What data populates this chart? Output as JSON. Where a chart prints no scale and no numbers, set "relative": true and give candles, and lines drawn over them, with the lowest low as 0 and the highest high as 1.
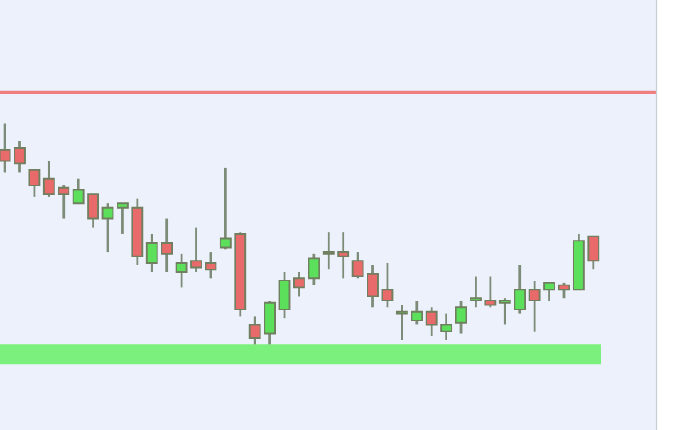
{
  "chart_data": {
    "type": "candlestick",
    "relative": true,
    "categories": [
      null,
      null,
      null,
      null,
      null,
      null,
      null,
      null,
      null,
      null,
      null,
      null,
      null,
      null,
      null,
      null,
      null,
      null,
      null,
      null,
      null,
      null,
      null,
      null,
      null,
      null,
      null,
      null,
      null,
      null,
      null,
      null,
      null,
      null,
      null,
      null,
      null,
      null,
      null,
      null,
      null
    ],
    "ohlc": [
      [
        0.88,
        1.0,
        0.78,
        0.83
      ],
      [
        0.89,
        0.92,
        0.78,
        0.82
      ],
      [
        0.79,
        0.79,
        0.67,
        0.72
      ],
      [
        0.75,
        0.83,
        0.67,
        0.68
      ],
      [
        0.71,
        0.72,
        0.57,
        0.68
      ],
      [
        0.64,
        0.75,
        0.64,
        0.7
      ],
      [
        0.68,
        0.68,
        0.53,
        0.57
      ],
      [
        0.57,
        0.64,
        0.42,
        0.62
      ],
      [
        0.62,
        0.64,
        0.5,
        0.64
      ],
      [
        0.62,
        0.66,
        0.36,
        0.4
      ],
      [
        0.37,
        0.5,
        0.33,
        0.46
      ],
      [
        0.46,
        0.57,
        0.33,
        0.41
      ],
      [
        0.33,
        0.41,
        0.26,
        0.37
      ],
      [
        0.38,
        0.53,
        0.33,
        0.35
      ],
      [
        0.37,
        0.42,
        0.3,
        0.34
      ],
      [
        0.44,
        0.8,
        0.43,
        0.48
      ],
      [
        0.5,
        0.51,
        0.13,
        0.16
      ],
      [
        0.09,
        0.13,
        0.0,
        0.03
      ],
      [
        0.05,
        0.2,
        0.0,
        0.19
      ],
      [
        0.16,
        0.33,
        0.12,
        0.29
      ],
      [
        0.3,
        0.33,
        0.22,
        0.26
      ],
      [
        0.3,
        0.41,
        0.27,
        0.39
      ],
      [
        0.41,
        0.51,
        0.34,
        0.42
      ],
      [
        0.42,
        0.51,
        0.3,
        0.4
      ],
      [
        0.38,
        0.42,
        0.3,
        0.31
      ],
      [
        0.32,
        0.36,
        0.17,
        0.22
      ],
      [
        0.25,
        0.37,
        0.17,
        0.2
      ],
      [
        0.14,
        0.18,
        0.02,
        0.15
      ],
      [
        0.11,
        0.2,
        0.09,
        0.15
      ],
      [
        0.15,
        0.17,
        0.04,
        0.09
      ],
      [
        0.06,
        0.14,
        0.02,
        0.09
      ],
      [
        0.1,
        0.2,
        0.05,
        0.17
      ],
      [
        0.2,
        0.31,
        0.17,
        0.21
      ],
      [
        0.2,
        0.31,
        0.17,
        0.18
      ],
      [
        0.19,
        0.21,
        0.09,
        0.2
      ],
      [
        0.16,
        0.36,
        0.14,
        0.25
      ],
      [
        0.25,
        0.29,
        0.06,
        0.2
      ],
      [
        0.25,
        0.28,
        0.2,
        0.28
      ],
      [
        0.27,
        0.28,
        0.21,
        0.25
      ],
      [
        0.25,
        0.5,
        0.25,
        0.47
      ],
      [
        0.49,
        0.49,
        0.34,
        0.38
      ]
    ],
    "ref_lines": [
      {
        "axis": "y",
        "value": 1.14,
        "color": "#f08080"
      }
    ],
    "bands": [
      {
        "axis": "y",
        "from": -0.09,
        "to": 0.0,
        "color": "#7cf07c"
      }
    ]
  }
}
